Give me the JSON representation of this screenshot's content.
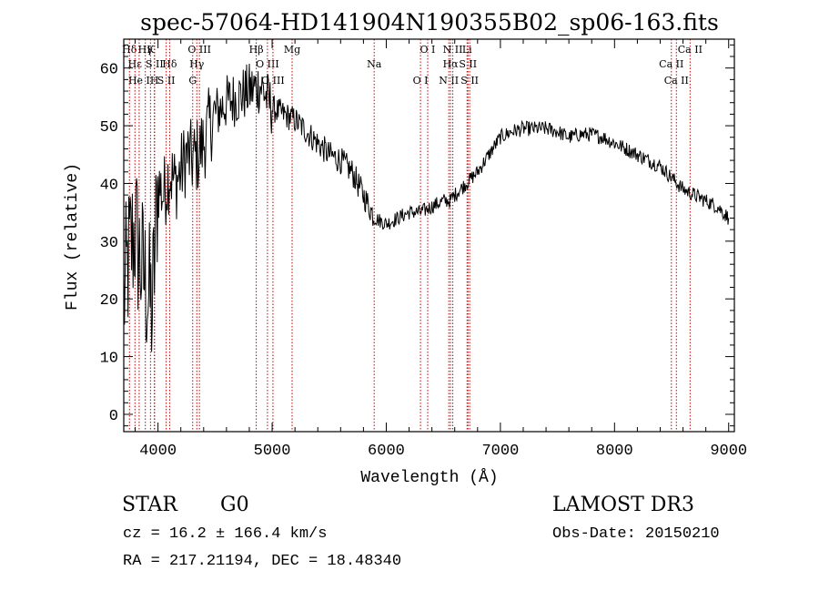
{
  "chart_data": {
    "type": "line",
    "title": "spec-57064-HD141904N190355B02_sp06-163.fits",
    "xlabel": "Wavelength (Å)",
    "ylabel": "Flux (relative)",
    "xlim": [
      3700,
      9050
    ],
    "ylim": [
      -3,
      65
    ],
    "xticks": [
      4000,
      5000,
      6000,
      7000,
      8000,
      9000
    ],
    "yticks": [
      0,
      10,
      20,
      30,
      40,
      50,
      60
    ],
    "x_minor_step": 200,
    "y_minor_step": 2,
    "series": [
      {
        "name": "flux",
        "x": [
          3700,
          3750,
          3800,
          3850,
          3900,
          3950,
          4000,
          4050,
          4100,
          4150,
          4200,
          4250,
          4300,
          4350,
          4400,
          4450,
          4500,
          4600,
          4700,
          4800,
          4900,
          5000,
          5100,
          5200,
          5300,
          5400,
          5500,
          5600,
          5700,
          5800,
          5900,
          6000,
          6100,
          6200,
          6300,
          6400,
          6500,
          6560,
          6600,
          6700,
          6800,
          6900,
          7000,
          7100,
          7200,
          7300,
          7400,
          7500,
          7600,
          7700,
          7800,
          7900,
          8000,
          8100,
          8200,
          8300,
          8400,
          8500,
          8600,
          8700,
          8800,
          8900,
          9000
        ],
        "y": [
          20,
          28,
          32,
          26,
          22,
          18,
          40,
          38,
          42,
          40,
          42,
          45,
          44,
          45,
          47,
          50,
          52,
          54,
          55,
          56,
          57,
          53,
          52,
          51,
          49,
          47,
          45,
          44,
          42,
          38,
          34,
          33,
          34,
          35,
          35,
          36,
          37,
          37,
          38,
          40,
          42,
          45,
          48,
          49,
          49.5,
          49.5,
          49.5,
          49,
          48,
          48.5,
          48.5,
          48,
          47,
          46,
          45,
          44,
          43,
          41,
          39,
          38,
          37,
          36,
          34
        ]
      }
    ],
    "lines": [
      {
        "label": "Hδ",
        "x": 3750
      },
      {
        "label": "Hε",
        "x": 3798
      },
      {
        "label": "He I",
        "x": 3835
      },
      {
        "label": "K",
        "x": 3934
      },
      {
        "label": "S II",
        "x": 3970
      },
      {
        "label": "H",
        "x": 3968
      },
      {
        "label": "Hγ",
        "x": 3889
      },
      {
        "label": "Hδ",
        "x": 4102
      },
      {
        "label": "S II",
        "x": 4072
      },
      {
        "label": "O III",
        "x": 4363
      },
      {
        "label": "Hγ",
        "x": 4340
      },
      {
        "label": "G",
        "x": 4304
      },
      {
        "label": "Hβ",
        "x": 4861
      },
      {
        "label": "O III",
        "x": 4959
      },
      {
        "label": "O III",
        "x": 5007
      },
      {
        "label": "Mg",
        "x": 5175
      },
      {
        "label": "Na",
        "x": 5894
      },
      {
        "label": "O I",
        "x": 6300
      },
      {
        "label": "O I",
        "x": 6363
      },
      {
        "label": "Hα",
        "x": 6563
      },
      {
        "label": "N II",
        "x": 6548
      },
      {
        "label": "N II",
        "x": 6583
      },
      {
        "label": "S II",
        "x": 6716
      },
      {
        "label": "S II",
        "x": 6731
      },
      {
        "label": "Li",
        "x": 6708
      },
      {
        "label": "Ca II",
        "x": 8498
      },
      {
        "label": "Ca II",
        "x": 8542
      },
      {
        "label": "Ca II",
        "x": 8662
      }
    ]
  },
  "info": {
    "class_label": "STAR",
    "subclass": "G0",
    "survey": "LAMOST DR3",
    "cz": "cz = 16.2 ± 166.4 km/s",
    "obs_date": "Obs-Date: 20150210",
    "coords": "RA = 217.21194, DEC =  18.48340"
  }
}
